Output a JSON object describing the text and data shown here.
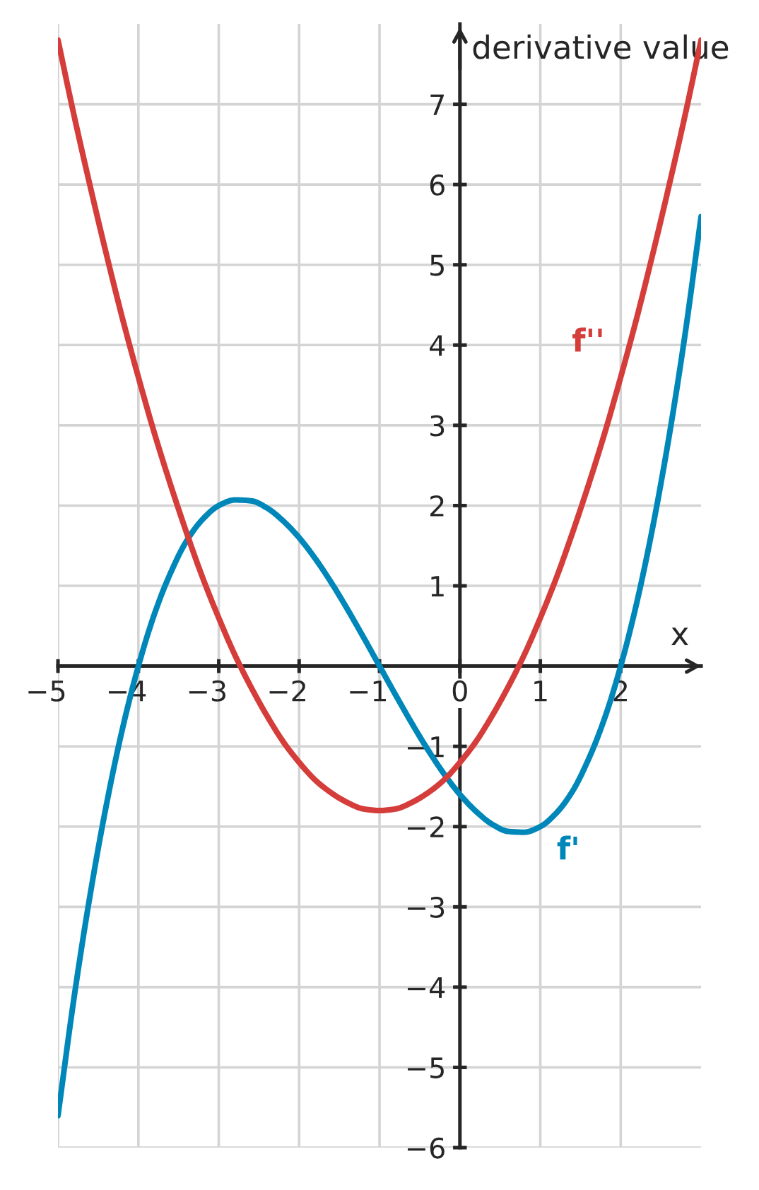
{
  "chart_data": {
    "type": "line",
    "xlabel": "x",
    "ylabel": "derivative value",
    "x": [
      -5,
      -4.8,
      -4.6,
      -4.4,
      -4.2,
      -4,
      -3.8,
      -3.6,
      -3.4,
      -3.2,
      -3,
      -2.8,
      -2.6,
      -2.4,
      -2.2,
      -2,
      -1.8,
      -1.6,
      -1.4,
      -1.2,
      -1,
      -0.8,
      -0.6,
      -0.4,
      -0.2,
      0,
      0.2,
      0.4,
      0.6,
      0.8,
      1,
      1.2,
      1.4,
      1.6,
      1.8,
      2,
      2.2,
      2.4,
      2.6,
      2.8,
      3
    ],
    "series": [
      {
        "name": "f'",
        "color": "#0087b9",
        "values": [
          -5.6,
          -4.13,
          -2.85,
          -1.74,
          -0.79,
          0,
          0.65,
          1.16,
          1.56,
          1.83,
          2.0,
          2.07,
          2.06,
          1.97,
          1.81,
          1.6,
          1.34,
          1.04,
          0.71,
          0.36,
          0,
          -0.36,
          -0.71,
          -1.04,
          -1.34,
          -1.6,
          -1.81,
          -1.97,
          -2.06,
          -2.07,
          -2.0,
          -1.83,
          -1.56,
          -1.16,
          -0.65,
          0,
          0.79,
          1.74,
          2.85,
          4.13,
          5.6
        ]
      },
      {
        "name": "f''",
        "color": "#d43d3a",
        "values": [
          7.8,
          6.86,
          5.98,
          5.14,
          4.34,
          3.6,
          2.9,
          2.26,
          1.66,
          1.1,
          0.6,
          0.14,
          -0.26,
          -0.62,
          -0.94,
          -1.2,
          -1.42,
          -1.58,
          -1.7,
          -1.78,
          -1.8,
          -1.78,
          -1.7,
          -1.58,
          -1.42,
          -1.2,
          -0.94,
          -0.62,
          -0.26,
          0.14,
          0.6,
          1.1,
          1.66,
          2.26,
          2.9,
          3.6,
          4.34,
          5.14,
          5.98,
          6.86,
          7.8
        ]
      }
    ],
    "xlim": [
      -5,
      3
    ],
    "ylim": [
      -6,
      8
    ],
    "xticks": [
      {
        "value": -5,
        "label": "−5"
      },
      {
        "value": -4,
        "label": "−4"
      },
      {
        "value": -3,
        "label": "−3"
      },
      {
        "value": -2,
        "label": "−2"
      },
      {
        "value": -1,
        "label": "−1"
      },
      0,
      1,
      2
    ],
    "yticks": [
      {
        "value": -6,
        "label": "−6"
      },
      {
        "value": -5,
        "label": "−5"
      },
      {
        "value": -4,
        "label": "−4"
      },
      {
        "value": -3,
        "label": "−3"
      },
      {
        "value": -2,
        "label": "−2"
      },
      {
        "value": -1,
        "label": "−1"
      },
      1,
      2,
      3,
      4,
      5,
      6,
      7
    ],
    "grid": true,
    "legend": false,
    "line_style": "solid"
  }
}
